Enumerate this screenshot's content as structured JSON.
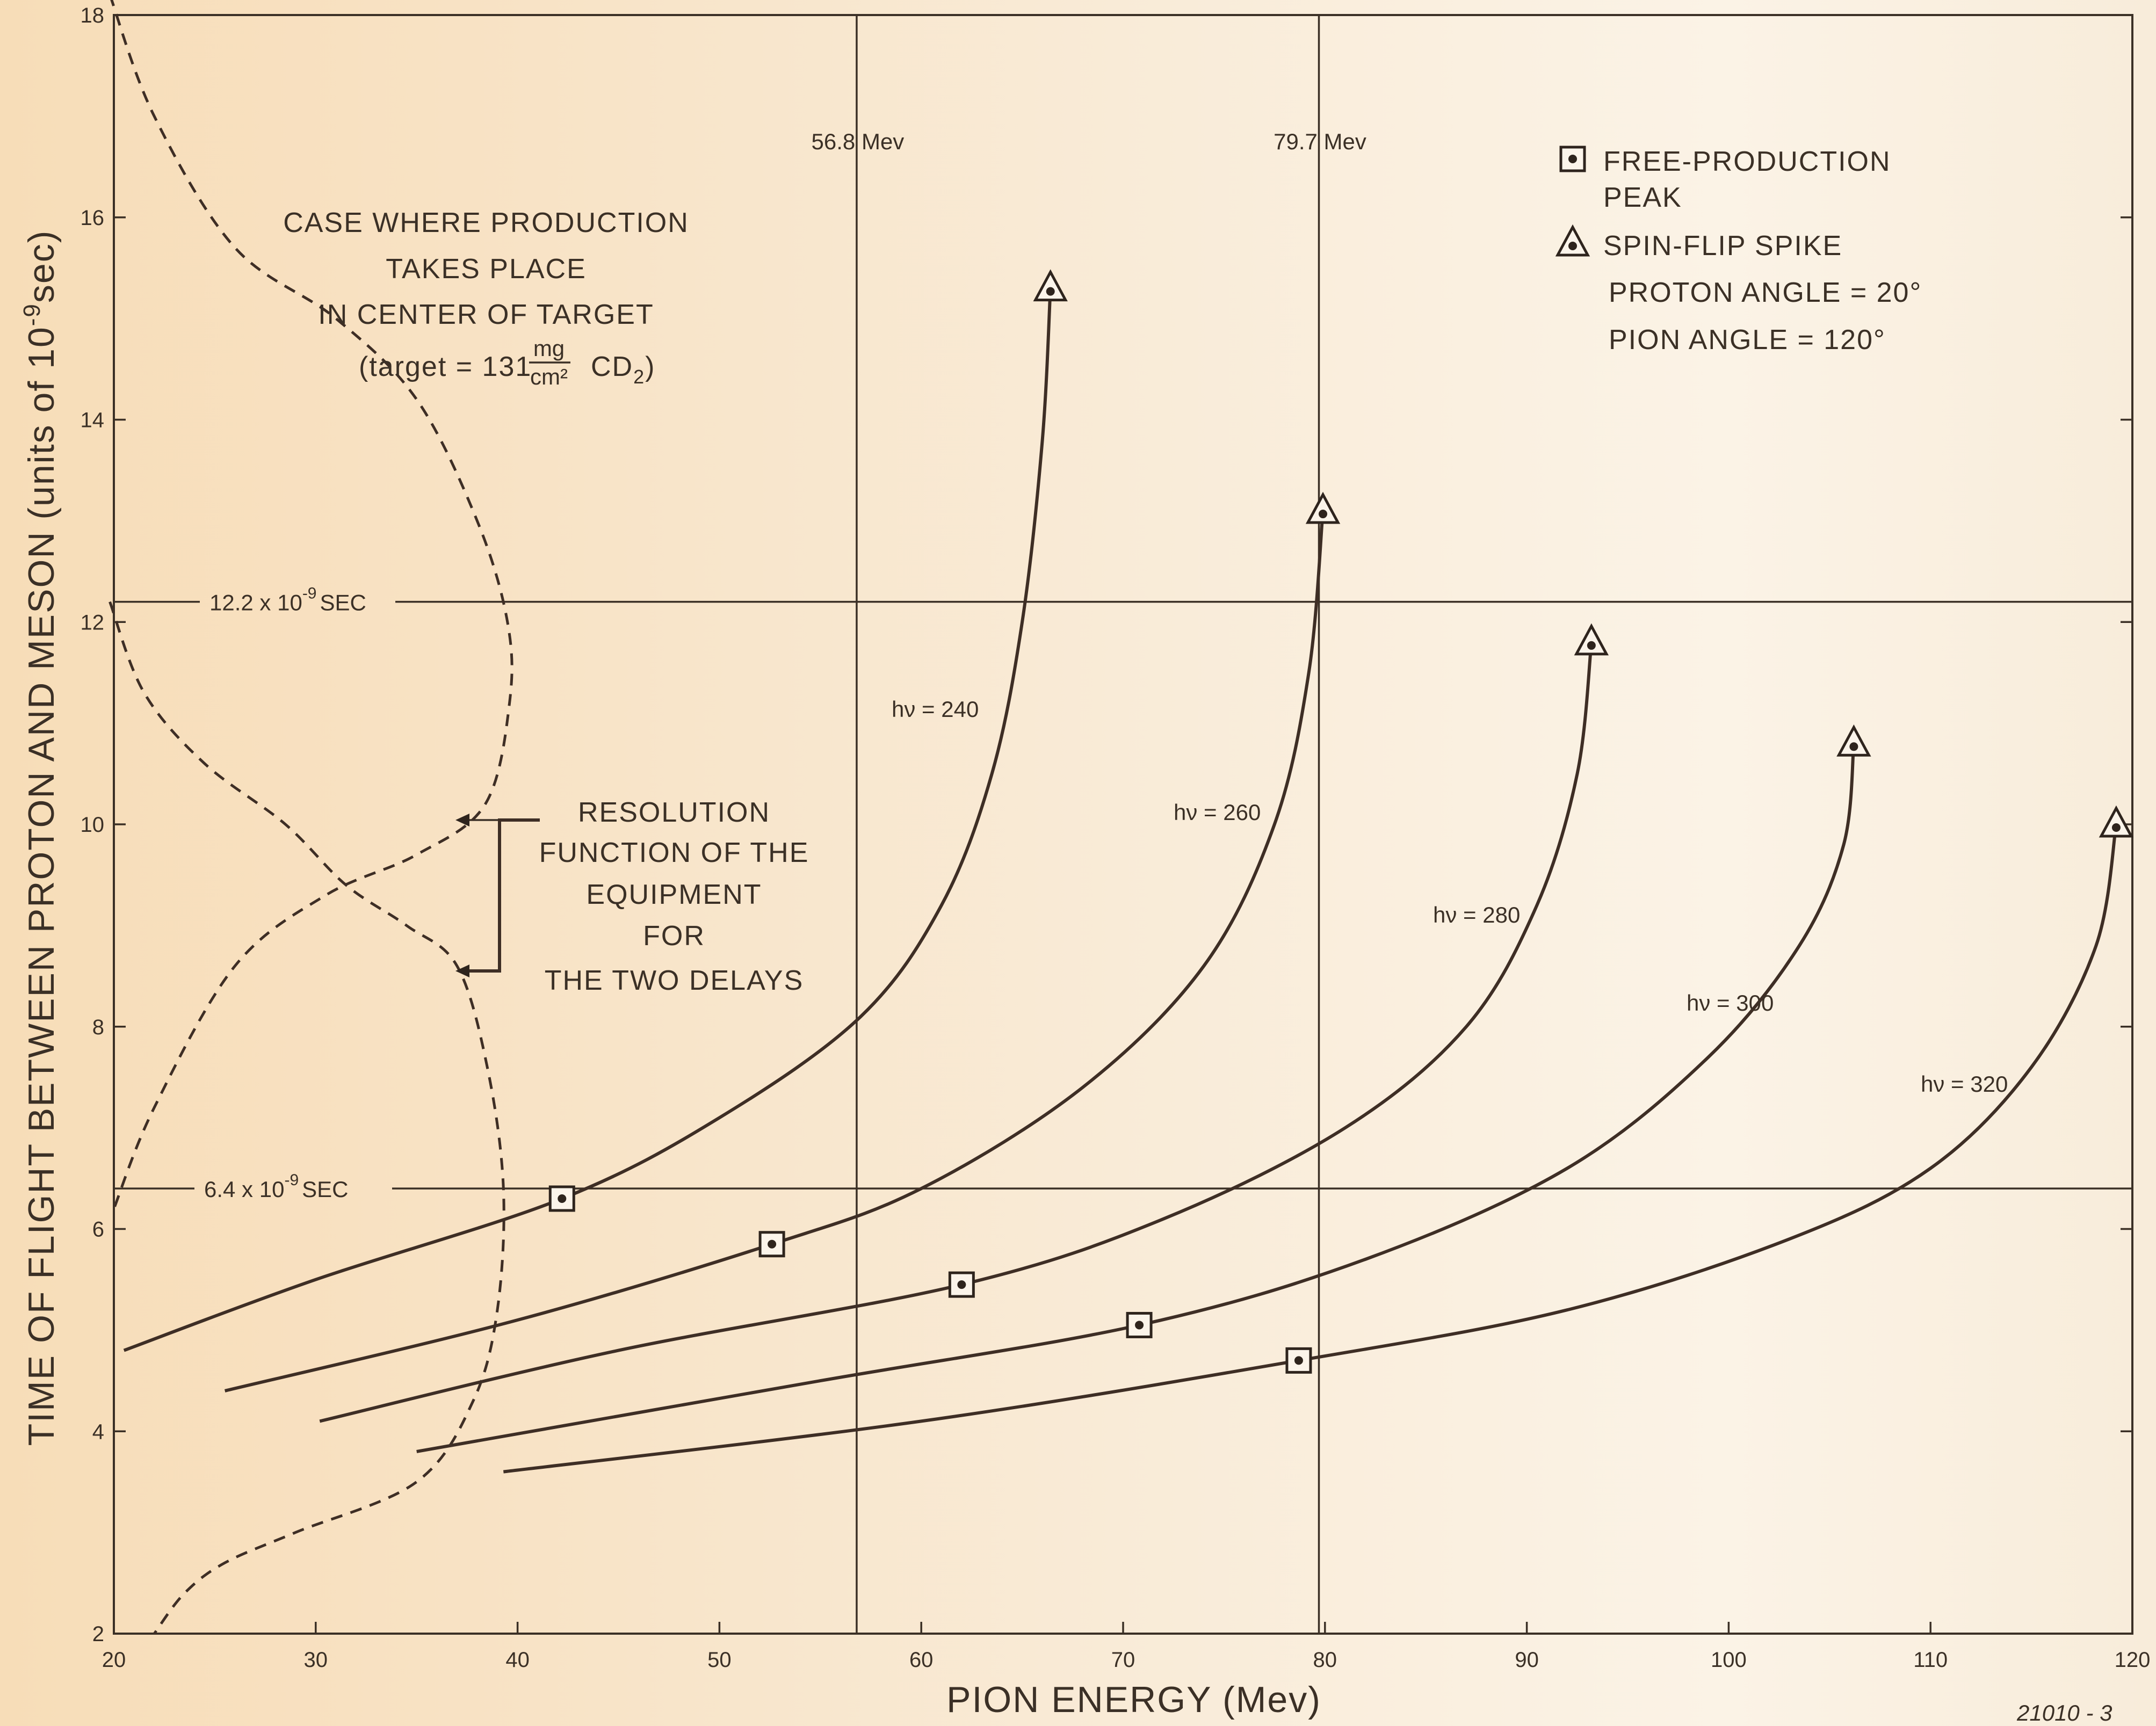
{
  "chart_data": {
    "type": "line",
    "xlabel": "PION  ENERGY (Mev)",
    "ylabel": "TIME OF FLIGHT BETWEEN PROTON AND MESON (units of 10",
    "ylabel_exp": "-9",
    "ylabel_tail": "sec)",
    "xlim": [
      20,
      120
    ],
    "ylim": [
      2,
      18
    ],
    "x_ticks": [
      "20",
      "30",
      "40",
      "50",
      "60",
      "70",
      "80",
      "90",
      "100",
      "110",
      "120"
    ],
    "y_ticks": [
      "2",
      "4",
      "6",
      "8",
      "10",
      "12",
      "14",
      "16",
      "18"
    ],
    "vertical_lines": [
      {
        "x": 56.8,
        "label": "56.8 Mev"
      },
      {
        "x": 79.7,
        "label": "79.7 Mev"
      }
    ],
    "horizontal_lines": [
      {
        "y": 12.2,
        "label": "12.2 x 10",
        "exp": "-9",
        "suffix": "SEC"
      },
      {
        "y": 6.4,
        "label": "6.4 x 10",
        "exp": "-9",
        "suffix": "SEC"
      }
    ],
    "series": [
      {
        "name": "hν = 240",
        "points": [
          [
            20.5,
            4.8
          ],
          [
            30,
            5.5
          ],
          [
            42.2,
            6.3
          ],
          [
            50,
            7.1
          ],
          [
            57,
            8.1
          ],
          [
            61,
            9.2
          ],
          [
            63.5,
            10.5
          ],
          [
            65,
            12
          ],
          [
            66,
            13.8
          ],
          [
            66.4,
            15.3
          ]
        ],
        "peak": [
          42.2,
          6.3
        ],
        "spike": [
          66.4,
          15.3
        ]
      },
      {
        "name": "hν = 260",
        "points": [
          [
            25.5,
            4.4
          ],
          [
            40,
            5.1
          ],
          [
            52.6,
            5.85
          ],
          [
            60,
            6.4
          ],
          [
            68,
            7.4
          ],
          [
            74,
            8.6
          ],
          [
            77.5,
            10
          ],
          [
            79.2,
            11.5
          ],
          [
            79.9,
            13.1
          ]
        ],
        "peak": [
          52.6,
          5.85
        ],
        "spike": [
          79.9,
          13.1
        ]
      },
      {
        "name": "hν = 280",
        "points": [
          [
            30.2,
            4.1
          ],
          [
            45,
            4.8
          ],
          [
            62,
            5.45
          ],
          [
            72,
            6.1
          ],
          [
            81,
            7
          ],
          [
            87,
            8
          ],
          [
            90.5,
            9.2
          ],
          [
            92.5,
            10.5
          ],
          [
            93.2,
            11.8
          ]
        ],
        "peak": [
          62,
          5.45
        ],
        "spike": [
          93.2,
          11.8
        ]
      },
      {
        "name": "hν = 300",
        "points": [
          [
            35,
            3.8
          ],
          [
            55,
            4.5
          ],
          [
            70.8,
            5.05
          ],
          [
            82,
            5.7
          ],
          [
            92,
            6.6
          ],
          [
            99,
            7.7
          ],
          [
            103.5,
            8.8
          ],
          [
            105.7,
            9.8
          ],
          [
            106.2,
            10.8
          ]
        ],
        "peak": [
          70.8,
          5.05
        ],
        "spike": [
          106.2,
          10.8
        ]
      },
      {
        "name": "hν = 320",
        "points": [
          [
            39.3,
            3.6
          ],
          [
            60,
            4.1
          ],
          [
            78.7,
            4.7
          ],
          [
            92,
            5.2
          ],
          [
            103,
            5.9
          ],
          [
            110,
            6.6
          ],
          [
            115,
            7.6
          ],
          [
            118.2,
            8.8
          ],
          [
            119.2,
            10
          ]
        ],
        "peak": [
          78.7,
          4.7
        ],
        "spike": [
          119.2,
          10
        ]
      }
    ],
    "resolution_curves": [
      {
        "points": [
          [
            19.8,
            18.2
          ],
          [
            22,
            17
          ],
          [
            26,
            15.7
          ],
          [
            31,
            15
          ],
          [
            35,
            14.2
          ],
          [
            38,
            13
          ],
          [
            39.5,
            12
          ],
          [
            39.6,
            11.2
          ],
          [
            38.4,
            10.2
          ],
          [
            35,
            9.7
          ],
          [
            30.5,
            9.3
          ],
          [
            26,
            8.6
          ],
          [
            22,
            7.2
          ],
          [
            20,
            6.2
          ]
        ]
      },
      {
        "points": [
          [
            19.8,
            12.2
          ],
          [
            21.5,
            11.3
          ],
          [
            24.5,
            10.6
          ],
          [
            28.5,
            10
          ],
          [
            31.5,
            9.4
          ],
          [
            34.5,
            9
          ],
          [
            37,
            8.6
          ],
          [
            38.5,
            7.6
          ],
          [
            39.3,
            6.4
          ],
          [
            39,
            5.2
          ],
          [
            37.8,
            4.3
          ],
          [
            35,
            3.5
          ],
          [
            29,
            3
          ],
          [
            25.5,
            2.7
          ],
          [
            23.5,
            2.4
          ],
          [
            22,
            2
          ]
        ]
      }
    ],
    "legend": {
      "position": "top-right",
      "items": [
        {
          "marker": "square-dot",
          "label": "FREE-PRODUCTION",
          "label2": "PEAK"
        },
        {
          "marker": "triangle-dot",
          "label": "SPIN-FLIP SPIKE"
        }
      ],
      "notes": [
        "PROTON  ANGLE = 20°",
        "PION  ANGLE = 120°"
      ]
    }
  },
  "annotations": {
    "case_lines": [
      "CASE WHERE PRODUCTION",
      "TAKES PLACE",
      "IN CENTER OF TARGET"
    ],
    "target_prefix": "(target = 131",
    "target_num": "mg",
    "target_den": "cm²",
    "target_suffix": "CD",
    "target_sub": "2",
    "target_close": ")",
    "resolution_lines": [
      "RESOLUTION",
      "FUNCTION OF THE",
      "EQUIPMENT",
      "FOR",
      "THE TWO DELAYS"
    ],
    "corner_note": "21010 - 3"
  }
}
